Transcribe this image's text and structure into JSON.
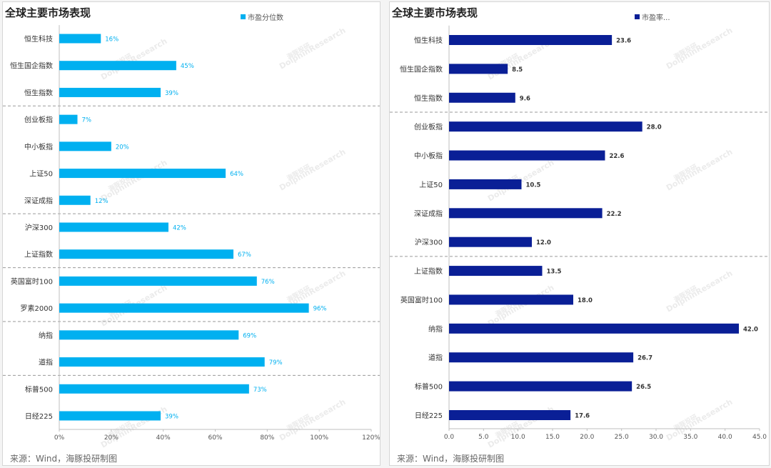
{
  "charts": [
    {
      "title": "全球主要市场表现",
      "source": "来源：Wind，海豚投研制图",
      "watermark": [
        "海豚投研",
        "DolphinResearch"
      ],
      "chart_data": {
        "type": "bar",
        "orientation": "horizontal",
        "categories": [
          "恒生科技",
          "恒生国企指数",
          "恒生指数",
          "创业板指",
          "中小板指",
          "上证50",
          "深证成指",
          "沪深300",
          "上证指数",
          "英国富时100",
          "罗素2000",
          "纳指",
          "道指",
          "标普500",
          "日经225"
        ],
        "series": [
          {
            "name": "市盈分位数",
            "values": [
              16,
              45,
              39,
              7,
              20,
              64,
              12,
              42,
              67,
              76,
              96,
              69,
              79,
              73,
              39
            ],
            "labels": [
              "16%",
              "45%",
              "39%",
              "7%",
              "20%",
              "64%",
              "12%",
              "42%",
              "67%",
              "76%",
              "96%",
              "69%",
              "79%",
              "73%",
              "39%"
            ],
            "color": "#00b0f0"
          }
        ],
        "xlim": [
          0,
          120
        ],
        "xticks": [
          0,
          20,
          40,
          60,
          80,
          100,
          120
        ],
        "xtick_labels": [
          "0%",
          "20%",
          "40%",
          "60%",
          "80%",
          "100%",
          "120%"
        ],
        "group_separators_after": [
          "恒生指数",
          "深证成指",
          "上证指数",
          "罗素2000",
          "道指"
        ],
        "legend_position": "top-right",
        "grid": false
      }
    },
    {
      "title": "全球主要市场表现",
      "source": "来源：Wind，海豚投研制图",
      "watermark": [
        "海豚投研",
        "DolphinResearch"
      ],
      "chart_data": {
        "type": "bar",
        "orientation": "horizontal",
        "categories": [
          "恒生科技",
          "恒生国企指数",
          "恒生指数",
          "创业板指",
          "中小板指",
          "上证50",
          "深证成指",
          "沪深300",
          "上证指数",
          "英国富时100",
          "纳指",
          "道指",
          "标普500",
          "日经225"
        ],
        "series": [
          {
            "name": "市盈率...",
            "values": [
              23.6,
              8.5,
              9.6,
              28.0,
              22.6,
              10.5,
              22.2,
              12.0,
              13.5,
              18.0,
              42.0,
              26.7,
              26.5,
              17.6
            ],
            "labels": [
              "23.6",
              "8.5",
              "9.6",
              "28.0",
              "22.6",
              "10.5",
              "22.2",
              "12.0",
              "13.5",
              "18.0",
              "42.0",
              "26.7",
              "26.5",
              "17.6"
            ],
            "color": "#0a1f96"
          }
        ],
        "xlim": [
          0,
          45
        ],
        "xticks": [
          0,
          5,
          10,
          15,
          20,
          25,
          30,
          35,
          40,
          45
        ],
        "xtick_labels": [
          "0.0",
          "5.0",
          "10.0",
          "15.0",
          "20.0",
          "25.0",
          "30.0",
          "35.0",
          "40.0",
          "45.0"
        ],
        "group_separators_after": [
          "恒生指数",
          "沪深300"
        ],
        "legend_position": "top-right",
        "grid": false
      }
    }
  ]
}
